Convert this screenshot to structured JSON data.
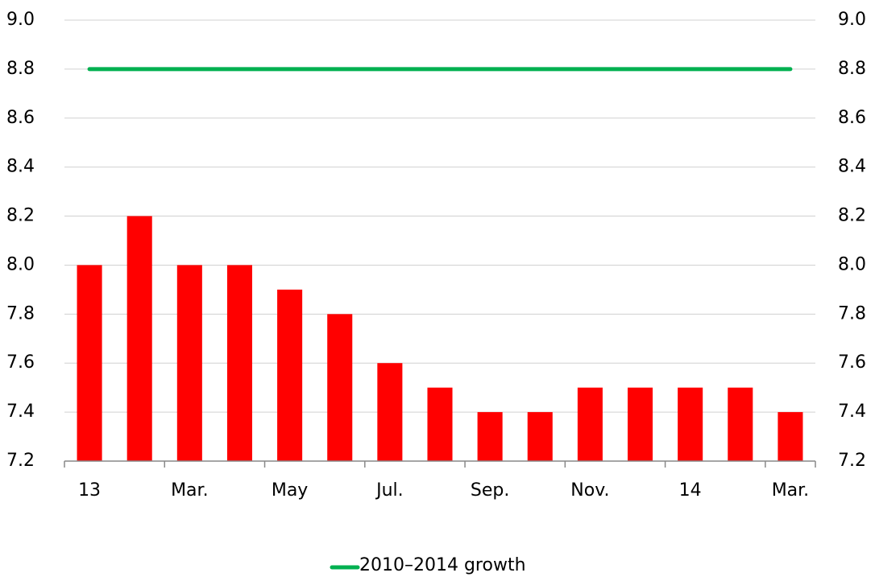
{
  "chart_data": {
    "type": "bar",
    "categories": [
      "13",
      null,
      "Mar.",
      null,
      "May",
      null,
      "Jul.",
      null,
      "Sep.",
      null,
      "Nov.",
      null,
      "14",
      null,
      "Mar."
    ],
    "series": [
      {
        "type": "bar",
        "color": "#ff0000",
        "values": [
          8.0,
          8.2,
          8.0,
          8.0,
          7.9,
          7.8,
          7.6,
          7.5,
          7.4,
          7.4,
          7.5,
          7.5,
          7.5,
          7.5,
          7.4
        ]
      },
      {
        "name": "2010–2014 growth",
        "type": "line",
        "color": "#00b050",
        "values": [
          8.8,
          8.8,
          8.8,
          8.8,
          8.8,
          8.8,
          8.8,
          8.8,
          8.8,
          8.8,
          8.8,
          8.8,
          8.8,
          8.8,
          8.8
        ]
      }
    ],
    "ylim": [
      7.2,
      9.0
    ],
    "yticks": [
      7.2,
      7.4,
      7.6,
      7.8,
      {
        "value": 8.0,
        "label": "8.0"
      },
      8.2,
      8.4,
      8.6,
      8.8,
      {
        "value": 9.0,
        "label": "9.0"
      }
    ],
    "y2lim": [
      7.2,
      9.0
    ],
    "y2ticks": [
      7.2,
      7.4,
      7.6,
      7.8,
      {
        "value": 8.0,
        "label": "8.0"
      },
      8.2,
      8.4,
      8.6,
      8.8,
      {
        "value": 9.0,
        "label": "9.0"
      }
    ],
    "grid": true,
    "legend": "bottom"
  }
}
